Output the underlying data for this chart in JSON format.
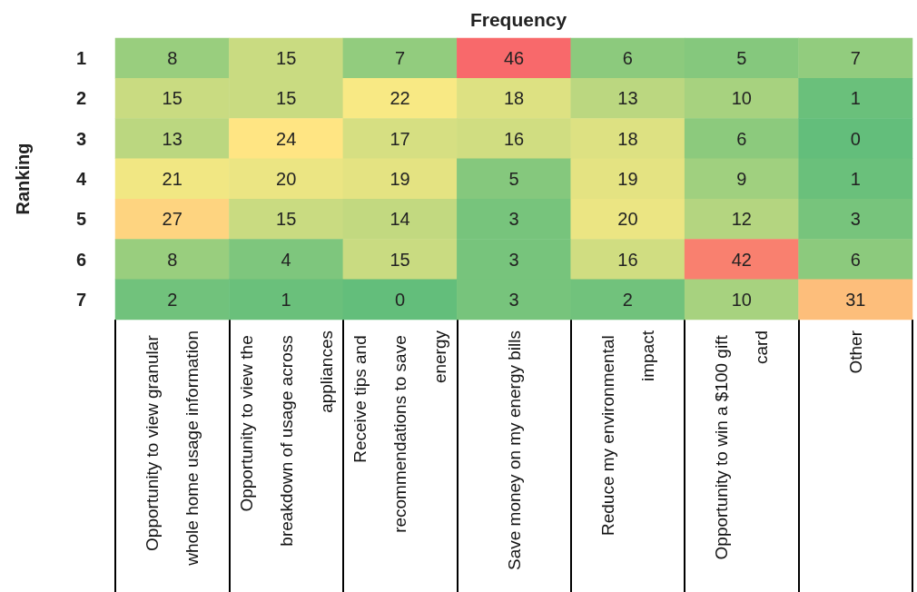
{
  "chart_data": {
    "type": "heatmap",
    "title": "Frequency",
    "ylabel": "Ranking",
    "categories": [
      "Opportunity to view granular whole home usage information",
      "Opportunity to view the breakdown of usage across appliances",
      "Receive tips and recommendations to save energy",
      "Save money on my energy bills",
      "Reduce my environmental impact",
      "Opportunity to win a $100 gift card",
      "Other"
    ],
    "y_categories": [
      "1",
      "2",
      "3",
      "4",
      "5",
      "6",
      "7"
    ],
    "cells": [
      [
        8,
        15,
        7,
        46,
        6,
        5,
        7
      ],
      [
        15,
        15,
        22,
        18,
        13,
        10,
        1
      ],
      [
        13,
        24,
        17,
        16,
        18,
        6,
        0
      ],
      [
        21,
        20,
        19,
        5,
        19,
        9,
        1
      ],
      [
        27,
        15,
        14,
        3,
        20,
        12,
        3
      ],
      [
        8,
        4,
        15,
        3,
        16,
        42,
        6
      ],
      [
        2,
        1,
        0,
        3,
        2,
        10,
        31
      ]
    ],
    "data_labels": true
  }
}
